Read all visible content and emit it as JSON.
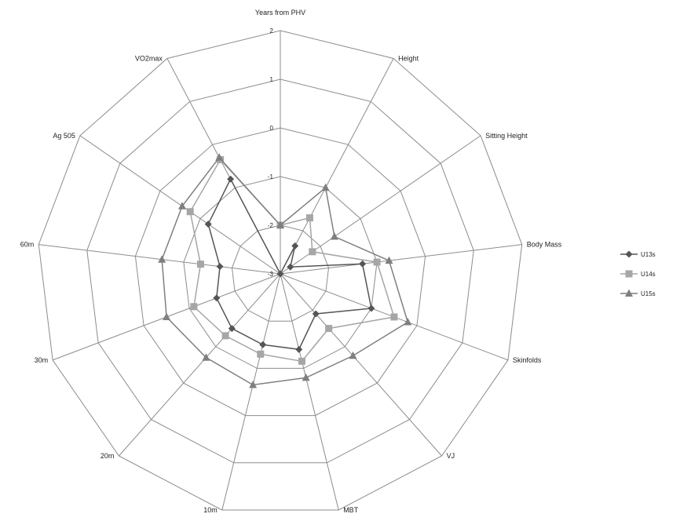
{
  "chart_data": {
    "type": "radar",
    "title": "",
    "axes": [
      "Years from PHV",
      "Height",
      "Sitting Height",
      "Body Mass",
      "Skinfolds",
      "VJ",
      "MBT",
      "10m",
      "20m",
      "30m",
      "60m",
      "Ag 505",
      "VO2max"
    ],
    "rlim": [
      -3,
      2
    ],
    "ticks": [
      "-3",
      "-2",
      "-1",
      "0",
      "1",
      "2"
    ],
    "legend_position": "right",
    "series": [
      {
        "name": "U13s",
        "color": "#555555",
        "marker": "diamond",
        "values": [
          -3.0,
          -2.35,
          -2.75,
          -1.3,
          -1.0,
          -1.9,
          -1.4,
          -1.5,
          -1.5,
          -1.6,
          -1.75,
          -1.2,
          -0.8
        ]
      },
      {
        "name": "U14s",
        "color": "#a6a6a6",
        "marker": "square",
        "values": [
          -2.0,
          -1.7,
          -2.2,
          -1.0,
          -0.5,
          -1.5,
          -1.15,
          -1.3,
          -1.3,
          -1.1,
          -1.35,
          -0.75,
          -0.35
        ]
      },
      {
        "name": "U15s",
        "color": "#7f7f7f",
        "marker": "triangle",
        "values": [
          -2.0,
          -1.0,
          -1.65,
          -0.75,
          -0.2,
          -0.75,
          -0.8,
          -0.65,
          -0.7,
          -0.5,
          -0.55,
          -0.55,
          -0.3
        ]
      }
    ]
  }
}
